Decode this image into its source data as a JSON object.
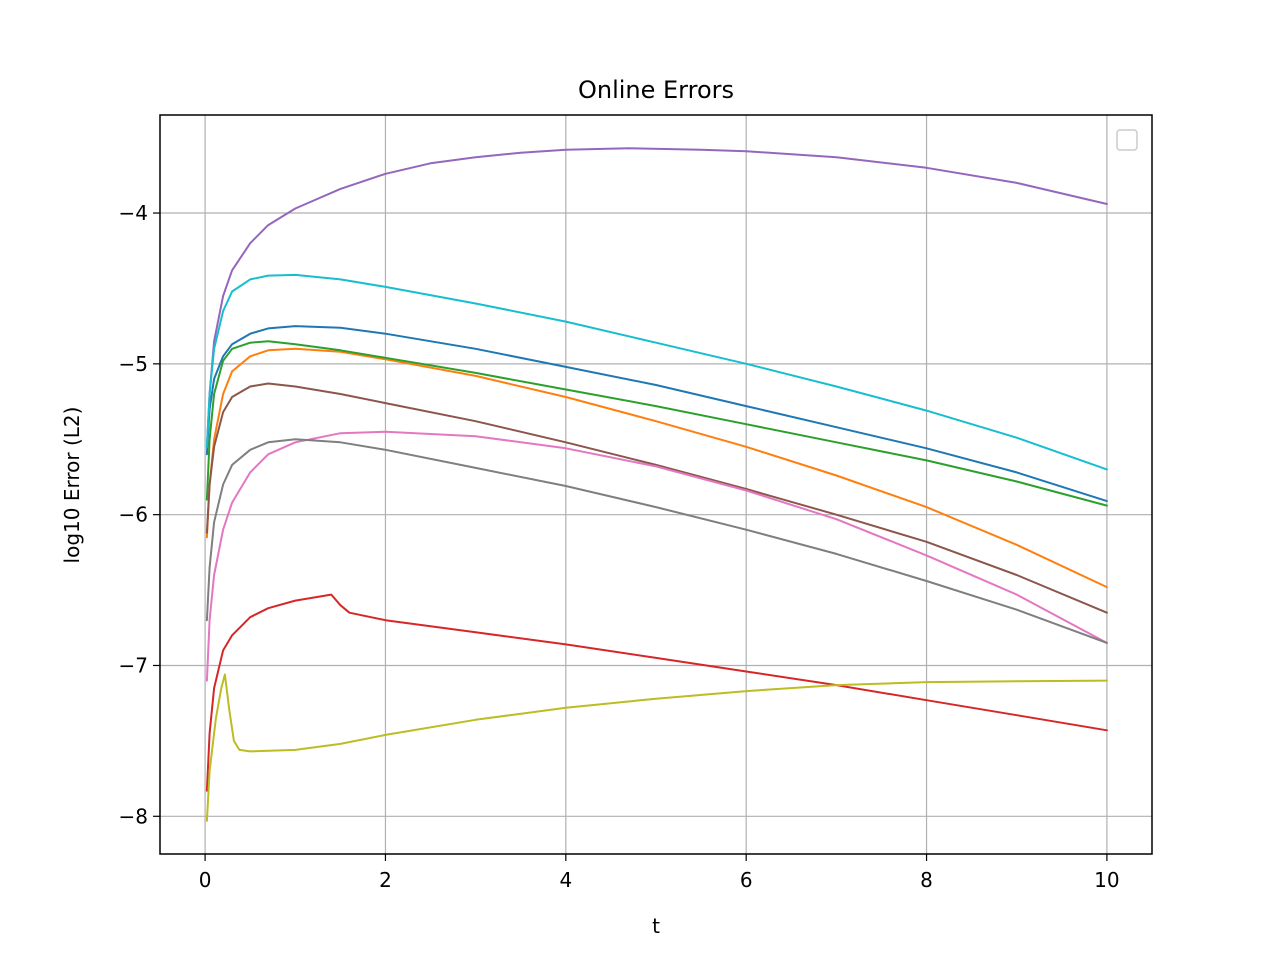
{
  "chart_data": {
    "type": "line",
    "title": "Online Errors",
    "xlabel": "t",
    "ylabel": "log10 Error (L2)",
    "xlim": [
      -0.5,
      10.5
    ],
    "ylim": [
      -8.25,
      -3.35
    ],
    "xticks": [
      0,
      2,
      4,
      6,
      8,
      10
    ],
    "yticks": [
      -8,
      -7,
      -6,
      -5,
      -4
    ],
    "ytick_labels": [
      "−8",
      "−7",
      "−6",
      "−5",
      "−4"
    ],
    "grid": true,
    "legend": "upper right (empty)",
    "series": [
      {
        "color": "#1f77b4",
        "points": [
          [
            0.02,
            -5.6
          ],
          [
            0.05,
            -5.3
          ],
          [
            0.1,
            -5.1
          ],
          [
            0.2,
            -4.95
          ],
          [
            0.3,
            -4.87
          ],
          [
            0.5,
            -4.8
          ],
          [
            0.7,
            -4.765
          ],
          [
            1.0,
            -4.75
          ],
          [
            1.5,
            -4.76
          ],
          [
            2,
            -4.8
          ],
          [
            3,
            -4.9
          ],
          [
            4,
            -5.02
          ],
          [
            5,
            -5.14
          ],
          [
            6,
            -5.28
          ],
          [
            7,
            -5.42
          ],
          [
            8,
            -5.56
          ],
          [
            9,
            -5.72
          ],
          [
            10,
            -5.91
          ]
        ]
      },
      {
        "color": "#ff7f0e",
        "points": [
          [
            0.02,
            -6.15
          ],
          [
            0.05,
            -5.8
          ],
          [
            0.1,
            -5.5
          ],
          [
            0.2,
            -5.2
          ],
          [
            0.3,
            -5.05
          ],
          [
            0.5,
            -4.95
          ],
          [
            0.7,
            -4.91
          ],
          [
            1.0,
            -4.9
          ],
          [
            1.5,
            -4.92
          ],
          [
            2,
            -4.97
          ],
          [
            3,
            -5.08
          ],
          [
            4,
            -5.22
          ],
          [
            5,
            -5.38
          ],
          [
            6,
            -5.55
          ],
          [
            7,
            -5.74
          ],
          [
            8,
            -5.95
          ],
          [
            9,
            -6.2
          ],
          [
            10,
            -6.48
          ]
        ]
      },
      {
        "color": "#2ca02c",
        "points": [
          [
            0.02,
            -5.9
          ],
          [
            0.05,
            -5.5
          ],
          [
            0.1,
            -5.2
          ],
          [
            0.2,
            -4.98
          ],
          [
            0.3,
            -4.9
          ],
          [
            0.5,
            -4.86
          ],
          [
            0.7,
            -4.85
          ],
          [
            1.0,
            -4.87
          ],
          [
            1.5,
            -4.91
          ],
          [
            2,
            -4.96
          ],
          [
            3,
            -5.06
          ],
          [
            4,
            -5.17
          ],
          [
            5,
            -5.28
          ],
          [
            6,
            -5.4
          ],
          [
            7,
            -5.52
          ],
          [
            8,
            -5.64
          ],
          [
            9,
            -5.78
          ],
          [
            10,
            -5.94
          ]
        ]
      },
      {
        "color": "#d62728",
        "points": [
          [
            0.02,
            -7.83
          ],
          [
            0.05,
            -7.45
          ],
          [
            0.1,
            -7.15
          ],
          [
            0.2,
            -6.9
          ],
          [
            0.3,
            -6.8
          ],
          [
            0.5,
            -6.68
          ],
          [
            0.7,
            -6.62
          ],
          [
            1.0,
            -6.57
          ],
          [
            1.2,
            -6.55
          ],
          [
            1.4,
            -6.53
          ],
          [
            1.5,
            -6.6
          ],
          [
            1.6,
            -6.65
          ],
          [
            2,
            -6.7
          ],
          [
            3,
            -6.78
          ],
          [
            4,
            -6.86
          ],
          [
            5,
            -6.95
          ],
          [
            6,
            -7.04
          ],
          [
            7,
            -7.13
          ],
          [
            8,
            -7.23
          ],
          [
            9,
            -7.33
          ],
          [
            10,
            -7.43
          ]
        ]
      },
      {
        "color": "#9467bd",
        "points": [
          [
            0.02,
            -5.55
          ],
          [
            0.05,
            -5.2
          ],
          [
            0.1,
            -4.85
          ],
          [
            0.2,
            -4.55
          ],
          [
            0.3,
            -4.38
          ],
          [
            0.5,
            -4.2
          ],
          [
            0.7,
            -4.08
          ],
          [
            1.0,
            -3.97
          ],
          [
            1.5,
            -3.84
          ],
          [
            2,
            -3.74
          ],
          [
            2.5,
            -3.67
          ],
          [
            3,
            -3.63
          ],
          [
            3.5,
            -3.6
          ],
          [
            4,
            -3.58
          ],
          [
            4.7,
            -3.57
          ],
          [
            5.5,
            -3.58
          ],
          [
            6,
            -3.59
          ],
          [
            7,
            -3.63
          ],
          [
            8,
            -3.7
          ],
          [
            9,
            -3.8
          ],
          [
            10,
            -3.94
          ]
        ]
      },
      {
        "color": "#8c564b",
        "points": [
          [
            0.02,
            -6.12
          ],
          [
            0.05,
            -5.8
          ],
          [
            0.1,
            -5.55
          ],
          [
            0.2,
            -5.32
          ],
          [
            0.3,
            -5.22
          ],
          [
            0.5,
            -5.15
          ],
          [
            0.7,
            -5.13
          ],
          [
            1.0,
            -5.15
          ],
          [
            1.5,
            -5.2
          ],
          [
            2,
            -5.26
          ],
          [
            3,
            -5.38
          ],
          [
            4,
            -5.52
          ],
          [
            5,
            -5.67
          ],
          [
            6,
            -5.83
          ],
          [
            7,
            -6.0
          ],
          [
            8,
            -6.18
          ],
          [
            9,
            -6.4
          ],
          [
            10,
            -6.65
          ]
        ]
      },
      {
        "color": "#e377c2",
        "points": [
          [
            0.02,
            -7.1
          ],
          [
            0.05,
            -6.7
          ],
          [
            0.1,
            -6.4
          ],
          [
            0.2,
            -6.1
          ],
          [
            0.3,
            -5.92
          ],
          [
            0.5,
            -5.72
          ],
          [
            0.7,
            -5.6
          ],
          [
            1.0,
            -5.52
          ],
          [
            1.5,
            -5.46
          ],
          [
            2,
            -5.45
          ],
          [
            3,
            -5.48
          ],
          [
            4,
            -5.56
          ],
          [
            5,
            -5.68
          ],
          [
            6,
            -5.84
          ],
          [
            7,
            -6.03
          ],
          [
            8,
            -6.27
          ],
          [
            9,
            -6.53
          ],
          [
            10,
            -6.85
          ]
        ]
      },
      {
        "color": "#7f7f7f",
        "points": [
          [
            0.02,
            -6.7
          ],
          [
            0.05,
            -6.35
          ],
          [
            0.1,
            -6.05
          ],
          [
            0.2,
            -5.8
          ],
          [
            0.3,
            -5.67
          ],
          [
            0.5,
            -5.57
          ],
          [
            0.7,
            -5.52
          ],
          [
            1.0,
            -5.5
          ],
          [
            1.5,
            -5.52
          ],
          [
            2,
            -5.57
          ],
          [
            3,
            -5.69
          ],
          [
            4,
            -5.81
          ],
          [
            5,
            -5.95
          ],
          [
            6,
            -6.1
          ],
          [
            7,
            -6.26
          ],
          [
            8,
            -6.44
          ],
          [
            9,
            -6.63
          ],
          [
            10,
            -6.85
          ]
        ]
      },
      {
        "color": "#bcbd22",
        "points": [
          [
            0.02,
            -8.03
          ],
          [
            0.05,
            -7.7
          ],
          [
            0.08,
            -7.55
          ],
          [
            0.12,
            -7.35
          ],
          [
            0.18,
            -7.15
          ],
          [
            0.22,
            -7.06
          ],
          [
            0.27,
            -7.3
          ],
          [
            0.32,
            -7.5
          ],
          [
            0.38,
            -7.56
          ],
          [
            0.5,
            -7.57
          ],
          [
            1.0,
            -7.56
          ],
          [
            1.5,
            -7.52
          ],
          [
            2,
            -7.46
          ],
          [
            3,
            -7.36
          ],
          [
            4,
            -7.28
          ],
          [
            5,
            -7.22
          ],
          [
            6,
            -7.17
          ],
          [
            7,
            -7.13
          ],
          [
            8,
            -7.11
          ],
          [
            9,
            -7.105
          ],
          [
            10,
            -7.1
          ]
        ]
      },
      {
        "color": "#17becf",
        "points": [
          [
            0.02,
            -5.55
          ],
          [
            0.05,
            -5.2
          ],
          [
            0.1,
            -4.9
          ],
          [
            0.2,
            -4.65
          ],
          [
            0.3,
            -4.52
          ],
          [
            0.5,
            -4.44
          ],
          [
            0.7,
            -4.415
          ],
          [
            1.0,
            -4.41
          ],
          [
            1.5,
            -4.44
          ],
          [
            2,
            -4.49
          ],
          [
            3,
            -4.6
          ],
          [
            4,
            -4.72
          ],
          [
            5,
            -4.86
          ],
          [
            6,
            -5.0
          ],
          [
            7,
            -5.15
          ],
          [
            8,
            -5.31
          ],
          [
            9,
            -5.49
          ],
          [
            10,
            -5.7
          ]
        ]
      }
    ]
  }
}
